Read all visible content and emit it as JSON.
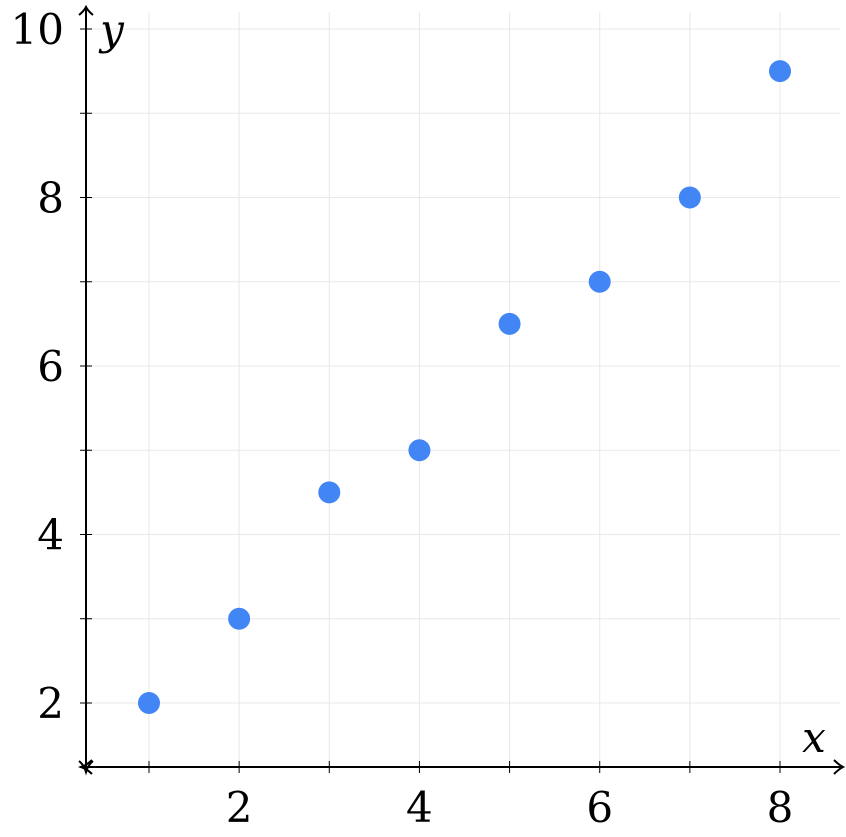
{
  "chart_data": {
    "type": "scatter",
    "xlabel": "x",
    "ylabel": "y",
    "xlim": [
      0.3,
      8.7
    ],
    "ylim": [
      1.3,
      10.2
    ],
    "xticks": [
      1,
      2,
      3,
      4,
      5,
      6,
      7,
      8
    ],
    "xtick_labels": [
      "2",
      "4",
      "6",
      "8"
    ],
    "xtick_label_values": [
      2,
      4,
      6,
      8
    ],
    "yticks": [
      2,
      3,
      4,
      5,
      6,
      7,
      8,
      9,
      10
    ],
    "ytick_labels": [
      "2",
      "4",
      "6",
      "8",
      "10"
    ],
    "ytick_label_values": [
      2,
      4,
      6,
      8,
      10
    ],
    "grid": true,
    "series": [
      {
        "x": [
          1,
          2,
          3,
          4,
          5,
          6,
          7,
          8
        ],
        "y": [
          2,
          3,
          4.5,
          5,
          6.5,
          7,
          8,
          9.5
        ],
        "color": "#4285f4"
      }
    ]
  }
}
